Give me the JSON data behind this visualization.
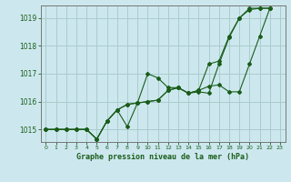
{
  "title": "Graphe pression niveau de la mer (hPa)",
  "background_color": "#cce8ee",
  "grid_color": "#aacccc",
  "line_color": "#1a5c1a",
  "xlim": [
    -0.5,
    23.5
  ],
  "ylim": [
    1014.55,
    1019.45
  ],
  "yticks": [
    1015,
    1016,
    1017,
    1018,
    1019
  ],
  "xticks": [
    0,
    1,
    2,
    3,
    4,
    5,
    6,
    7,
    8,
    9,
    10,
    11,
    12,
    13,
    14,
    15,
    16,
    17,
    18,
    19,
    20,
    21,
    22,
    23
  ],
  "x_labels": [
    "0",
    "1",
    "2",
    "3",
    "4",
    "5",
    "6",
    "7",
    "8",
    "9",
    "10",
    "11",
    "12",
    "13",
    "14",
    "15",
    "16",
    "17",
    "18",
    "19",
    "20",
    "21",
    "22",
    "23"
  ],
  "series1_x": [
    0,
    1,
    2,
    3,
    4,
    5,
    6,
    7,
    8,
    9,
    10,
    11,
    12,
    13,
    14,
    15,
    16,
    17,
    18,
    19,
    20,
    21,
    22
  ],
  "series1_y": [
    1015.0,
    1015.0,
    1015.0,
    1015.0,
    1015.0,
    1014.65,
    1015.3,
    1015.7,
    1015.1,
    1015.95,
    1017.0,
    1016.85,
    1016.5,
    1016.5,
    1016.3,
    1016.35,
    1016.3,
    1017.35,
    1018.3,
    1019.0,
    1019.3,
    1019.35,
    1019.35
  ],
  "series2_x": [
    0,
    1,
    2,
    3,
    4,
    5,
    6,
    7,
    8,
    9,
    10,
    11,
    12,
    13,
    14,
    15,
    16,
    17,
    18,
    19,
    20,
    21,
    22
  ],
  "series2_y": [
    1015.0,
    1015.0,
    1015.0,
    1015.0,
    1015.0,
    1014.65,
    1015.3,
    1015.7,
    1015.9,
    1015.95,
    1016.0,
    1016.05,
    1016.4,
    1016.5,
    1016.3,
    1016.4,
    1016.55,
    1016.6,
    1016.35,
    1016.35,
    1017.35,
    1018.35,
    1019.35
  ],
  "series3_x": [
    0,
    1,
    2,
    3,
    4,
    5,
    6,
    7,
    8,
    9,
    10,
    11,
    12,
    13,
    14,
    15,
    16,
    17,
    18,
    19,
    20,
    21,
    22
  ],
  "series3_y": [
    1015.0,
    1015.0,
    1015.0,
    1015.0,
    1015.0,
    1014.65,
    1015.3,
    1015.7,
    1015.9,
    1015.95,
    1016.0,
    1016.05,
    1016.4,
    1016.5,
    1016.3,
    1016.4,
    1017.35,
    1017.45,
    1018.35,
    1019.0,
    1019.35,
    1019.35,
    1019.35
  ]
}
